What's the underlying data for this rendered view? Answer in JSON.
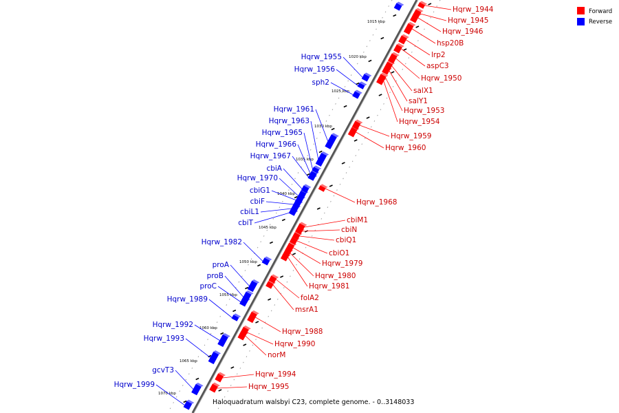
{
  "caption": "Haloquadratum walsbyi C23, complete genome. - 0..3148033",
  "legend": [
    {
      "label": "Forward",
      "color": "#ff0000"
    },
    {
      "label": "Reverse",
      "color": "#0000ff"
    }
  ],
  "colors": {
    "forward": "#ff0000",
    "reverse": "#0000ff",
    "fwd_label": "#cc0000",
    "rev_label": "#0000cc",
    "axis": "#777777"
  },
  "ticks": [
    "1015 kbp",
    "1020 kbp",
    "1025 kbp",
    "1030 kbp",
    "1035 kbp",
    "1040 kbp",
    "1045 kbp",
    "1050 kbp",
    "1055 kbp",
    "1060 kbp",
    "1065 kbp",
    "1070 kbp"
  ],
  "forward_genes": [
    "Hqrw_1944",
    "Hqrw_1945",
    "Hqrw_1946",
    "hsp20B",
    "lrp2",
    "aspC3",
    "Hqrw_1950",
    "salX1",
    "salY1",
    "Hqrw_1953",
    "Hqrw_1954",
    "Hqrw_1959",
    "Hqrw_1960",
    "Hqrw_1968",
    "cbiM1",
    "cbiN",
    "cbiQ1",
    "cbiO1",
    "Hqrw_1979",
    "Hqrw_1980",
    "Hqrw_1981",
    "folA2",
    "msrA1",
    "Hqrw_1988",
    "Hqrw_1990",
    "norM",
    "Hqrw_1994",
    "Hqrw_1995"
  ],
  "reverse_genes": [
    "Hqrw_1955",
    "Hqrw_1956",
    "sph2",
    "Hqrw_1961",
    "Hqrw_1963",
    "Hqrw_1965",
    "Hqrw_1966",
    "Hqrw_1967",
    "cbiA",
    "Hqrw_1970",
    "cbiG1",
    "cbiF",
    "cbiL1",
    "cbiT",
    "Hqrw_1982",
    "proA",
    "proB",
    "proC",
    "Hqrw_1989",
    "Hqrw_1992",
    "Hqrw_1993",
    "gcvT3",
    "Hqrw_1999"
  ]
}
